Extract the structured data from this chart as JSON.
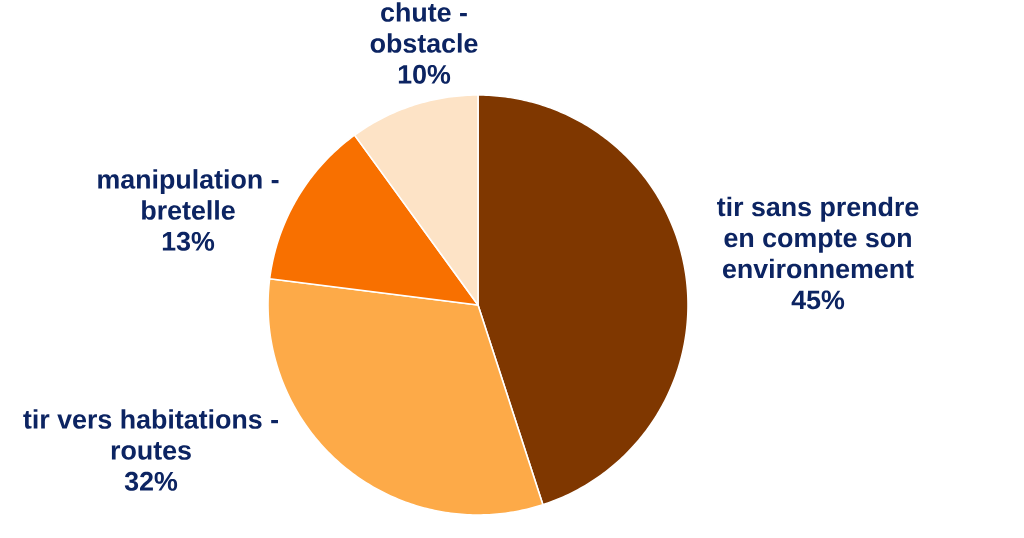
{
  "chart_data": {
    "type": "pie",
    "categories": [
      "tir sans prendre en compte son environnement",
      "tir vers habitations - routes",
      "manipulation - bretelle",
      "chute - obstacle"
    ],
    "values": [
      45,
      32,
      13,
      10
    ],
    "colors": [
      "#7f3700",
      "#fdaa48",
      "#f87000",
      "#fde3c6"
    ],
    "value_labels": [
      "45%",
      "32%",
      "13%",
      "10%"
    ]
  }
}
